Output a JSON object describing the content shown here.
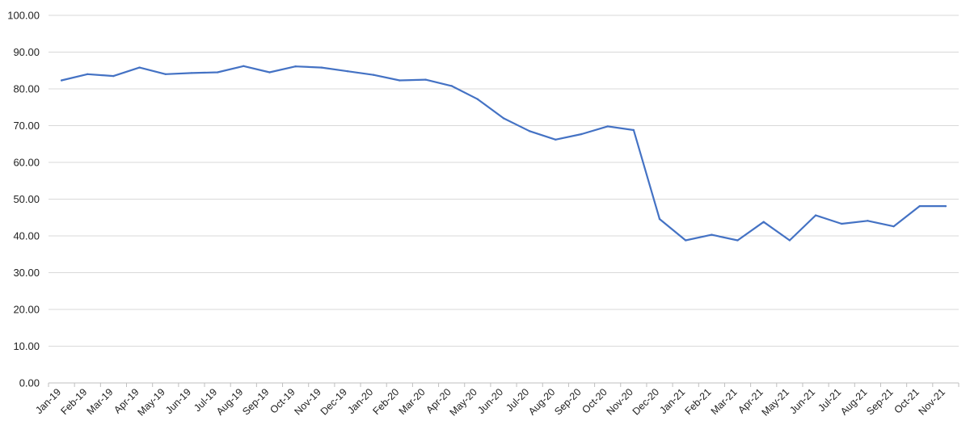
{
  "chart_data": {
    "type": "line",
    "title": "",
    "xlabel": "",
    "ylabel": "",
    "ylim": [
      0,
      100
    ],
    "y_ticks": [
      "0.00",
      "10.00",
      "20.00",
      "30.00",
      "40.00",
      "50.00",
      "60.00",
      "70.00",
      "80.00",
      "90.00",
      "100.00"
    ],
    "grid": true,
    "legend": "none",
    "line_color": "#4472c4",
    "categories": [
      "Jan-19",
      "Feb-19",
      "Mar-19",
      "Apr-19",
      "May-19",
      "Jun-19",
      "Jul-19",
      "Aug-19",
      "Sep-19",
      "Oct-19",
      "Nov-19",
      "Dec-19",
      "Jan-20",
      "Feb-20",
      "Mar-20",
      "Apr-20",
      "May-20",
      "Jun-20",
      "Jul-20",
      "Aug-20",
      "Sep-20",
      "Oct-20",
      "Nov-20",
      "Dec-20",
      "Jan-21",
      "Feb-21",
      "Mar-21",
      "Apr-21",
      "May-21",
      "Jun-21",
      "Jul-21",
      "Aug-21",
      "Sep-21",
      "Oct-21",
      "Nov-21"
    ],
    "series": [
      {
        "values": [
          82.3,
          84.0,
          83.5,
          85.8,
          84.0,
          84.3,
          84.5,
          86.2,
          84.5,
          86.1,
          85.8,
          84.8,
          83.8,
          82.3,
          82.5,
          80.8,
          77.2,
          72.0,
          68.5,
          66.2,
          67.7,
          69.8,
          68.8,
          44.6,
          38.8,
          40.3,
          38.8,
          43.8,
          38.8,
          45.6,
          43.3,
          44.1,
          42.6,
          48.1,
          48.1
        ]
      }
    ]
  }
}
